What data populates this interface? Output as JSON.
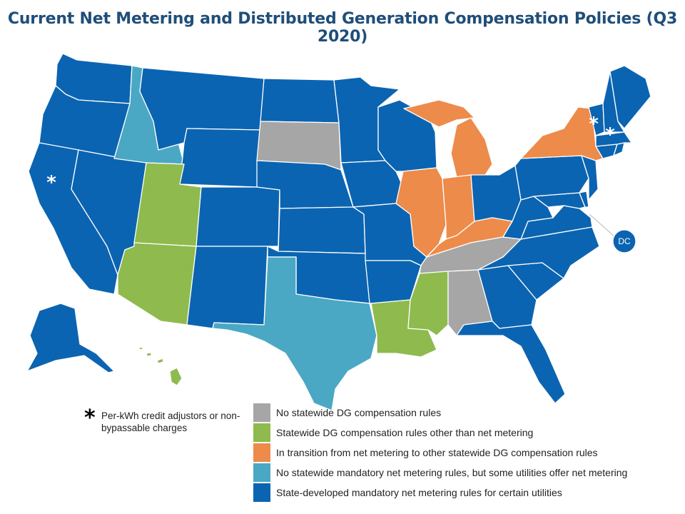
{
  "title": "Current Net Metering and Distributed Generation Compensation Policies (Q3 2020)",
  "colors": {
    "gray": "#a6a6a6",
    "green": "#8fba4e",
    "orange": "#ed8b4a",
    "lightblue": "#4aa8c4",
    "darkblue": "#0b64b1"
  },
  "categories": [
    {
      "color": "gray",
      "label": "No statewide DG compensation rules"
    },
    {
      "color": "green",
      "label": "Statewide DG compensation rules other than net metering"
    },
    {
      "color": "orange",
      "label": "In transition from net metering to other statewide DG compensation rules"
    },
    {
      "color": "lightblue",
      "label": "No statewide mandatory net metering rules, but some utilities offer net metering"
    },
    {
      "color": "darkblue",
      "label": "State-developed mandatory net metering rules for certain utilities"
    }
  ],
  "star_note": {
    "symbol": "*",
    "text": "Per-kWh credit adjustors or non-bypassable charges"
  },
  "dc_label": "DC",
  "star_symbol": "*",
  "states": [
    {
      "name": "Washington",
      "color": "darkblue"
    },
    {
      "name": "Oregon",
      "color": "darkblue"
    },
    {
      "name": "California",
      "color": "darkblue",
      "star": true
    },
    {
      "name": "Nevada",
      "color": "darkblue"
    },
    {
      "name": "Idaho",
      "color": "lightblue"
    },
    {
      "name": "Montana",
      "color": "darkblue"
    },
    {
      "name": "Wyoming",
      "color": "darkblue"
    },
    {
      "name": "Utah",
      "color": "green"
    },
    {
      "name": "Arizona",
      "color": "green"
    },
    {
      "name": "Colorado",
      "color": "darkblue"
    },
    {
      "name": "New Mexico",
      "color": "darkblue"
    },
    {
      "name": "North Dakota",
      "color": "darkblue"
    },
    {
      "name": "South Dakota",
      "color": "gray"
    },
    {
      "name": "Nebraska",
      "color": "darkblue"
    },
    {
      "name": "Kansas",
      "color": "darkblue"
    },
    {
      "name": "Oklahoma",
      "color": "darkblue"
    },
    {
      "name": "Texas",
      "color": "lightblue"
    },
    {
      "name": "Minnesota",
      "color": "darkblue"
    },
    {
      "name": "Iowa",
      "color": "darkblue"
    },
    {
      "name": "Missouri",
      "color": "darkblue"
    },
    {
      "name": "Arkansas",
      "color": "darkblue"
    },
    {
      "name": "Louisiana",
      "color": "green"
    },
    {
      "name": "Wisconsin",
      "color": "darkblue"
    },
    {
      "name": "Illinois",
      "color": "orange"
    },
    {
      "name": "Michigan",
      "color": "orange"
    },
    {
      "name": "Indiana",
      "color": "orange"
    },
    {
      "name": "Ohio",
      "color": "darkblue"
    },
    {
      "name": "Kentucky",
      "color": "orange"
    },
    {
      "name": "Tennessee",
      "color": "gray"
    },
    {
      "name": "Mississippi",
      "color": "green"
    },
    {
      "name": "Alabama",
      "color": "gray"
    },
    {
      "name": "Georgia",
      "color": "darkblue"
    },
    {
      "name": "Florida",
      "color": "darkblue"
    },
    {
      "name": "South Carolina",
      "color": "darkblue"
    },
    {
      "name": "North Carolina",
      "color": "darkblue"
    },
    {
      "name": "Virginia",
      "color": "darkblue"
    },
    {
      "name": "West Virginia",
      "color": "darkblue"
    },
    {
      "name": "Maryland",
      "color": "darkblue"
    },
    {
      "name": "Delaware",
      "color": "darkblue"
    },
    {
      "name": "Pennsylvania",
      "color": "darkblue"
    },
    {
      "name": "New Jersey",
      "color": "darkblue"
    },
    {
      "name": "New York",
      "color": "orange"
    },
    {
      "name": "Connecticut",
      "color": "darkblue"
    },
    {
      "name": "Rhode Island",
      "color": "darkblue"
    },
    {
      "name": "Massachusetts",
      "color": "darkblue"
    },
    {
      "name": "Vermont",
      "color": "darkblue",
      "star": true
    },
    {
      "name": "New Hampshire",
      "color": "darkblue",
      "star": true
    },
    {
      "name": "Maine",
      "color": "darkblue"
    },
    {
      "name": "Alaska",
      "color": "darkblue"
    },
    {
      "name": "Hawaii",
      "color": "green"
    },
    {
      "name": "District of Columbia",
      "color": "darkblue"
    }
  ]
}
